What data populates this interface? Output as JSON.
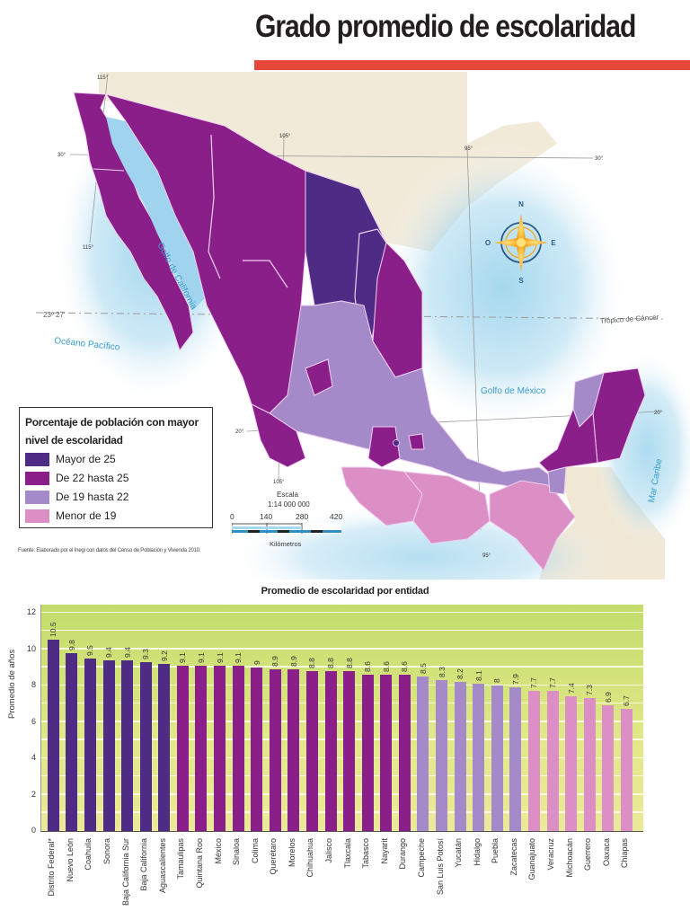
{
  "header": {
    "title": "Grado promedio de escolaridad",
    "accent_color": "#e8483a"
  },
  "map": {
    "labels": {
      "golfo_california": "Golfo de California",
      "oceano_pacifico": "Océano Pacífico",
      "golfo_mexico": "Golfo de México",
      "mar_caribe": "Mar Caribe",
      "tropico": "Trópico de Cáncer",
      "tropico_lat": "23º 27'"
    },
    "graticule": {
      "lon_115_top": "115°",
      "lon_115_bottom": "115°",
      "lon_105_top": "105°",
      "lon_105_bottom": "105°",
      "lon_95_top": "95°",
      "lon_95_bottom": "95°",
      "lat_30_left": "30°",
      "lat_30_right": "30°",
      "lat_20_left": "20°",
      "lat_20_right": "20°"
    },
    "compass": {
      "n": "N",
      "s": "S",
      "e": "E",
      "o": "O"
    },
    "legend": {
      "title": "Porcentaje de población con mayor nivel de escolaridad",
      "items": [
        {
          "label": "Mayor de 25",
          "color": "#4e2c85"
        },
        {
          "label": "De 22 hasta 25",
          "color": "#8a1f8a"
        },
        {
          "label": "De 19 hasta 22",
          "color": "#a48ac8"
        },
        {
          "label": "Menor de 19",
          "color": "#db8fc4"
        }
      ]
    },
    "scale": {
      "title": "Escala",
      "ratio": "1:14 000 000",
      "ticks": [
        "0",
        "140",
        "280",
        "420"
      ],
      "unit": "Kilómetros"
    },
    "source": "Fuente: Elaborado por el Inegi con datos del Censo de Población y Vivienda 2010."
  },
  "chart_data": {
    "type": "bar",
    "title": "Promedio de escolaridad por entidad",
    "xlabel": "",
    "ylabel": "Promedio de años",
    "ylim": [
      0,
      12
    ],
    "yticks": [
      "0",
      "2",
      "4",
      "6",
      "8",
      "10",
      "12"
    ],
    "grid": true,
    "legend_position": "none",
    "categories": [
      "Distrito Federal*",
      "Nuevo León",
      "Coahuila",
      "Sonora",
      "Baja California Sur",
      "Baja California",
      "Aguascalientes",
      "Tamaulipas",
      "Quintana Roo",
      "México",
      "Sinaloa",
      "Colima",
      "Querétaro",
      "Morelos",
      "Chihuahua",
      "Jalisco",
      "Tlaxcala",
      "Tabasco",
      "Nayarit",
      "Durango",
      "Campeche",
      "San Luis Potosí",
      "Yucatán",
      "Hidalgo",
      "Puebla",
      "Zacatecas",
      "Guanajuato",
      "Veracruz",
      "Michoacán",
      "Guerrero",
      "Oaxaca",
      "Chiapas"
    ],
    "values": [
      10.5,
      9.8,
      9.5,
      9.4,
      9.4,
      9.3,
      9.2,
      9.1,
      9.1,
      9.1,
      9.1,
      9,
      8.9,
      8.9,
      8.8,
      8.8,
      8.8,
      8.6,
      8.6,
      8.6,
      8.5,
      8.3,
      8.2,
      8.1,
      8,
      7.9,
      7.7,
      7.7,
      7.4,
      7.3,
      6.9,
      6.7
    ],
    "value_labels": [
      "10.5",
      "9.8",
      "9.5",
      "9.4",
      "9.4",
      "9.3",
      "9.2",
      "9.1",
      "9.1",
      "9.1",
      "9.1",
      "9",
      "8.9",
      "8.9",
      "8.8",
      "8.8",
      "8.8",
      "8.6",
      "8.6",
      "8.6",
      "8.5",
      "8.3",
      "8.2",
      "8.1",
      "8",
      "7.9",
      "7.7",
      "7.7",
      "7.4",
      "7.3",
      "6.9",
      "6.7"
    ],
    "bar_groups": [
      "Mayor de 25",
      "Mayor de 25",
      "Mayor de 25",
      "Mayor de 25",
      "Mayor de 25",
      "Mayor de 25",
      "Mayor de 25",
      "De 22 hasta 25",
      "De 22 hasta 25",
      "De 22 hasta 25",
      "De 22 hasta 25",
      "De 22 hasta 25",
      "De 22 hasta 25",
      "De 22 hasta 25",
      "De 22 hasta 25",
      "De 22 hasta 25",
      "De 22 hasta 25",
      "De 22 hasta 25",
      "De 22 hasta 25",
      "De 22 hasta 25",
      "De 19 hasta 22",
      "De 19 hasta 22",
      "De 19 hasta 22",
      "De 19 hasta 22",
      "De 19 hasta 22",
      "De 19 hasta 22",
      "Menor de 19",
      "Menor de 19",
      "Menor de 19",
      "Menor de 19",
      "Menor de 19",
      "Menor de 19"
    ],
    "bar_colors": [
      "#4e2c85",
      "#4e2c85",
      "#4e2c85",
      "#4e2c85",
      "#4e2c85",
      "#4e2c85",
      "#4e2c85",
      "#8a1f8a",
      "#8a1f8a",
      "#8a1f8a",
      "#8a1f8a",
      "#8a1f8a",
      "#8a1f8a",
      "#8a1f8a",
      "#8a1f8a",
      "#8a1f8a",
      "#8a1f8a",
      "#8a1f8a",
      "#8a1f8a",
      "#8a1f8a",
      "#a48ac8",
      "#a48ac8",
      "#a48ac8",
      "#a48ac8",
      "#a48ac8",
      "#a48ac8",
      "#db8fc4",
      "#db8fc4",
      "#db8fc4",
      "#db8fc4",
      "#db8fc4",
      "#db8fc4"
    ]
  }
}
